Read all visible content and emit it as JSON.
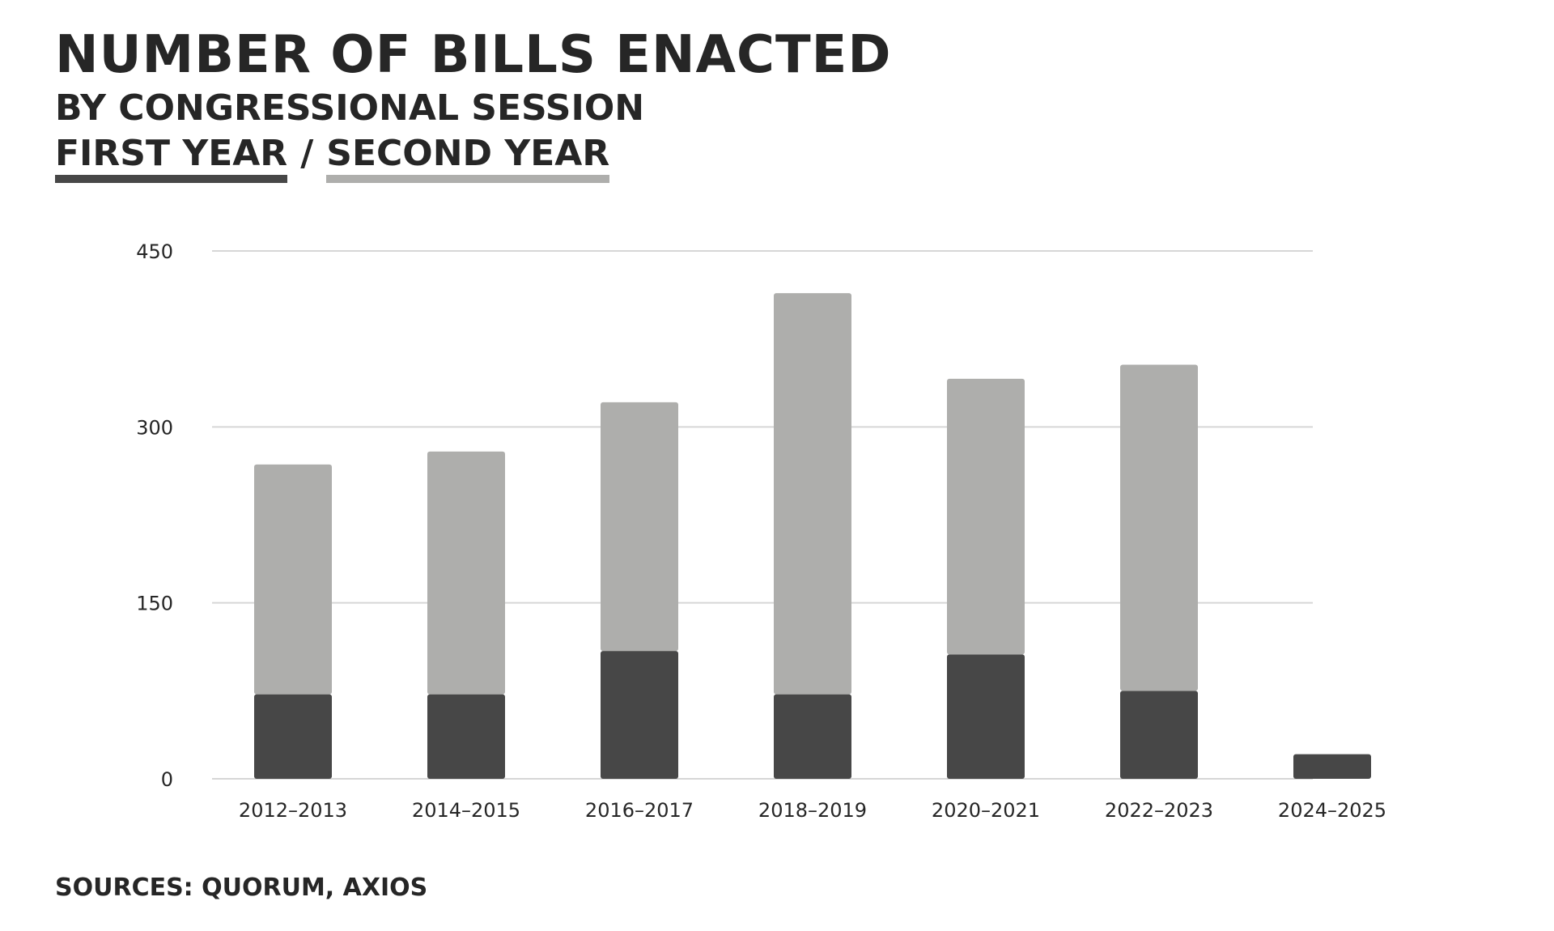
{
  "chart_data": {
    "type": "bar",
    "stacked": true,
    "title": "NUMBER OF BILLS ENACTED",
    "subtitle": "BY CONGRESSIONAL SESSION",
    "categories": [
      "2012–2013",
      "2014–2015",
      "2016–2017",
      "2018–2019",
      "2020–2021",
      "2022–2023",
      "2024–2025"
    ],
    "series": [
      {
        "name": "FIRST YEAR",
        "color": "#474747",
        "values": [
          72,
          72,
          109,
          72,
          106,
          75,
          21
        ]
      },
      {
        "name": "SECOND YEAR",
        "color": "#aeaeac",
        "values": [
          196,
          207,
          212,
          342,
          235,
          278,
          0
        ]
      }
    ],
    "yticks": [
      0,
      150,
      300,
      450
    ],
    "ylim": [
      0,
      450
    ],
    "xlabel": "",
    "ylabel": "",
    "grid": true,
    "legend_position": "top-left, under subtitle"
  },
  "legend_separator": "/",
  "source": "SOURCES: QUORUM, AXIOS",
  "colors": {
    "first_year": "#474747",
    "second_year": "#aeaeac",
    "gridline": "#d6d6d6",
    "text": "#262626"
  }
}
